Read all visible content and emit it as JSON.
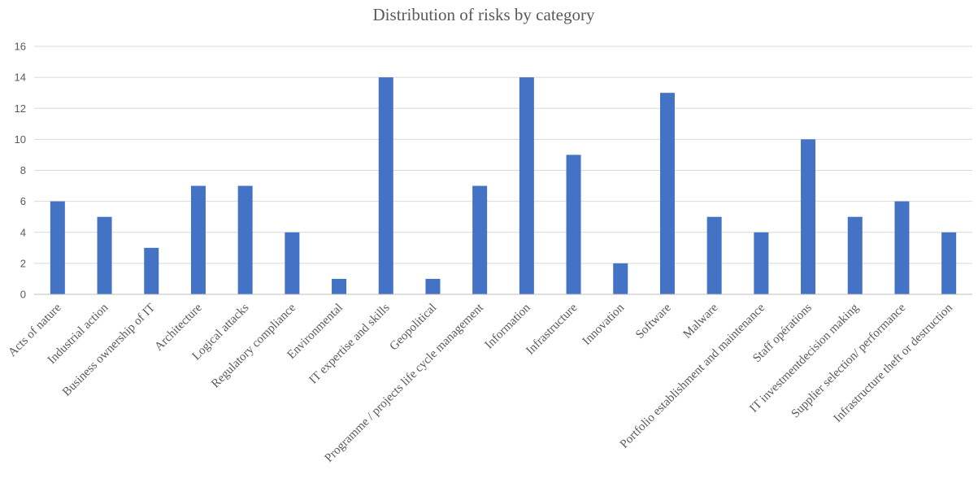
{
  "chart_data": {
    "type": "bar",
    "title": "Distribution of risks by category",
    "xlabel": "",
    "ylabel": "",
    "ylim": [
      0,
      16
    ],
    "yticks": [
      0,
      2,
      4,
      6,
      8,
      10,
      12,
      14,
      16
    ],
    "grid": true,
    "legend": "none",
    "bar_color": "#4472c4",
    "categories": [
      "Acts of nature",
      "Industrial action",
      "Business ownership of IT",
      "Architecture",
      "Logical attacks",
      "Regulatory compliance",
      "Environmental",
      "IT expertise and skills",
      "Geopolitical",
      "Programme / projects life cycle management",
      "Information",
      "Infrastructure",
      "Innovation",
      "Software",
      "Malware",
      "Portfolio establishment and maintenance",
      "Staff opérations",
      "IT investmentdecision making",
      "Supplier selection/ performance",
      "Infrastructure theft or destruction"
    ],
    "values": [
      6,
      5,
      3,
      7,
      7,
      4,
      1,
      14,
      1,
      7,
      14,
      9,
      2,
      13,
      5,
      4,
      10,
      5,
      6,
      4
    ]
  }
}
